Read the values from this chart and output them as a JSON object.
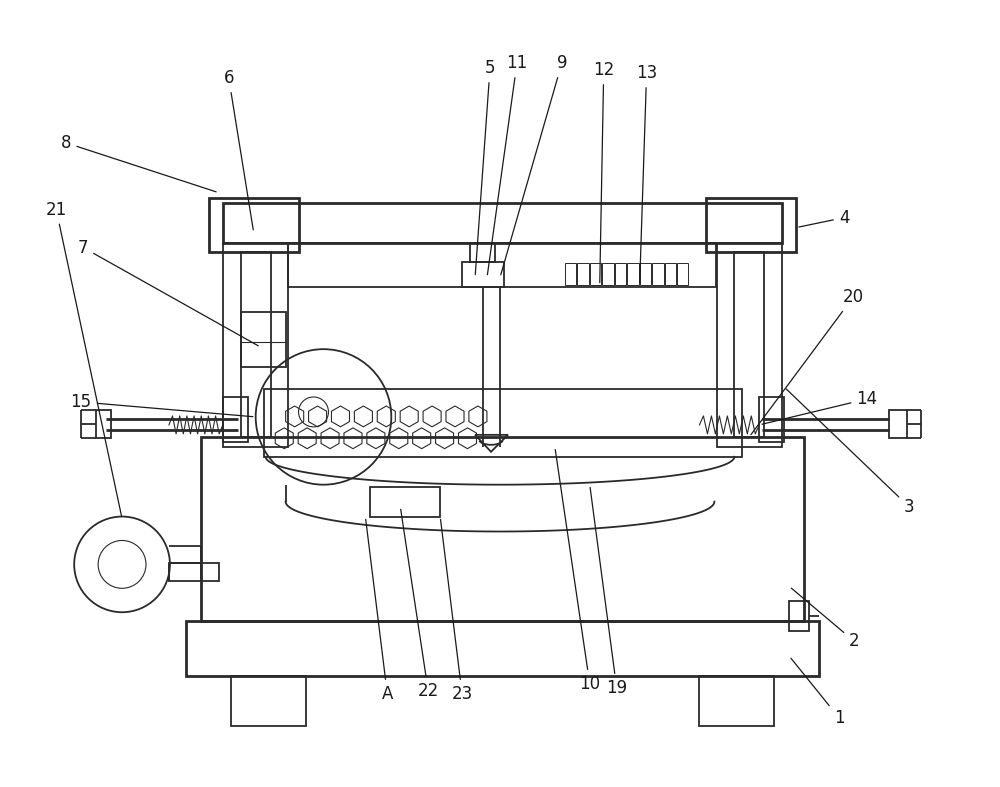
{
  "bg_color": "#ffffff",
  "line_color": "#2a2a2a",
  "lw": 1.3,
  "lw_thick": 2.0,
  "lw_thin": 0.8,
  "fig_width": 10.0,
  "fig_height": 7.87
}
